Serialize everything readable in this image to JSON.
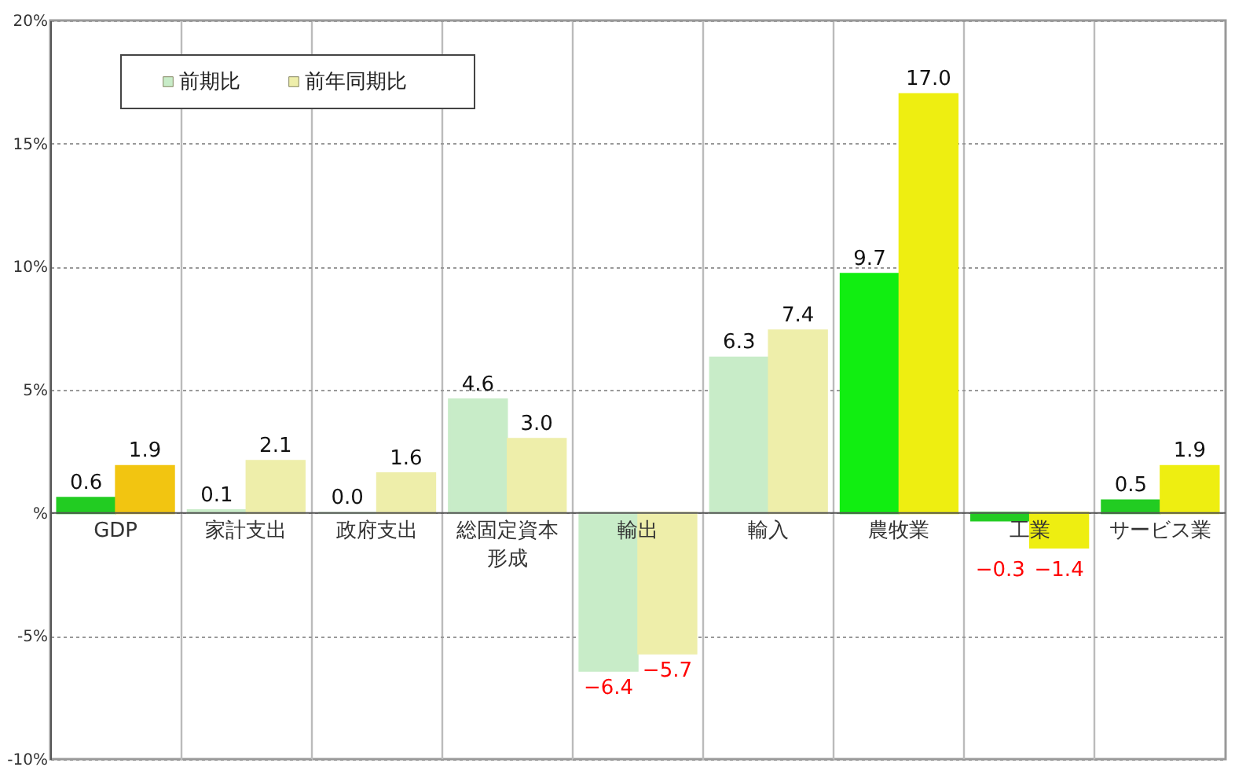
{
  "chart_data": {
    "type": "bar",
    "categories": [
      "GDP",
      "家計支出",
      "政府支出",
      "総固定資本形成",
      "輸出",
      "輸入",
      "農牧業",
      "工業",
      "サービス業"
    ],
    "series": [
      {
        "name": "前期比",
        "color": "#c8ecc8",
        "values": [
          0.6,
          0.1,
          0.0,
          4.6,
          -6.4,
          6.3,
          9.7,
          -0.3,
          0.5
        ],
        "value_labels": [
          "0.6",
          "0.1",
          "0.0",
          "4.6",
          "−6.4",
          "6.3",
          "9.7",
          "−0.3",
          "0.5"
        ],
        "colors": [
          "#22cc22",
          "#c8ecc8",
          "#c8ecc8",
          "#c8ecc8",
          "#c8ecc8",
          "#c8ecc8",
          "#11ee11",
          "#22cc22",
          "#22cc22"
        ]
      },
      {
        "name": "前年同期比",
        "color": "#eeeeaa",
        "values": [
          1.9,
          2.1,
          1.6,
          3.0,
          -5.7,
          7.4,
          17.0,
          -1.4,
          1.9
        ],
        "value_labels": [
          "1.9",
          "2.1",
          "1.6",
          "3.0",
          "−5.7",
          "7.4",
          "17.0",
          "−1.4",
          "1.9"
        ],
        "colors": [
          "#f2c511",
          "#eeeeaa",
          "#eeeeaa",
          "#eeeeaa",
          "#eeeeaa",
          "#eeeeaa",
          "#eeee11",
          "#eeee11",
          "#eeee11"
        ]
      }
    ],
    "ylim": [
      -10,
      20
    ],
    "yticks": [
      {
        "value": 20,
        "label": "20%"
      },
      {
        "value": 15,
        "label": "15%"
      },
      {
        "value": 10,
        "label": "10%"
      },
      {
        "value": 5,
        "label": "5%"
      },
      {
        "value": 0,
        "label": "%"
      },
      {
        "value": -5,
        "label": "-5%"
      },
      {
        "value": -10,
        "label": "-10%"
      }
    ],
    "grid": true,
    "legend": "top left"
  }
}
